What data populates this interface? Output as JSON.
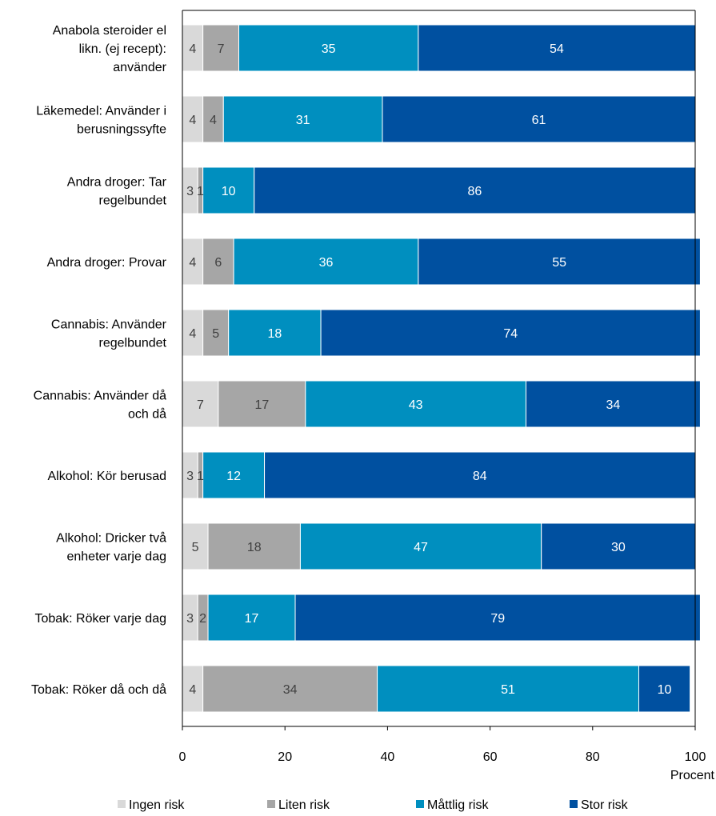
{
  "chart_data": {
    "type": "bar",
    "orientation": "horizontal",
    "stacked": true,
    "title": "",
    "xlabel": "Procent",
    "ylabel": "",
    "xlim": [
      0,
      100
    ],
    "xticks": [
      0,
      20,
      40,
      60,
      80,
      100
    ],
    "grid": false,
    "legend_position": "bottom",
    "categories": [
      [
        "Anabola steroider el",
        "likn. (ej recept):",
        "använder"
      ],
      [
        "Läkemedel: Använder i",
        "berusningssyfte"
      ],
      [
        "Andra droger: Tar",
        "regelbundet"
      ],
      [
        "Andra droger: Provar"
      ],
      [
        "Cannabis: Använder",
        "regelbundet"
      ],
      [
        "Cannabis: Använder då",
        "och då"
      ],
      [
        "Alkohol: Kör berusad"
      ],
      [
        "Alkohol: Dricker två",
        "enheter varje dag"
      ],
      [
        "Tobak: Röker varje dag"
      ],
      [
        "Tobak: Röker då och då"
      ]
    ],
    "series": [
      {
        "name": "Ingen risk",
        "color": "#d9d9d9",
        "label_color": "#404040",
        "values": [
          4,
          4,
          3,
          4,
          4,
          7,
          3,
          5,
          3,
          4
        ]
      },
      {
        "name": "Liten risk",
        "color": "#a6a6a6",
        "label_color": "#404040",
        "values": [
          7,
          4,
          1,
          6,
          5,
          17,
          1,
          18,
          2,
          34
        ]
      },
      {
        "name": "Måttlig risk",
        "color": "#008fbf",
        "label_color": "#ffffff",
        "values": [
          35,
          31,
          10,
          36,
          18,
          43,
          12,
          47,
          17,
          51
        ]
      },
      {
        "name": "Stor risk",
        "color": "#0050a0",
        "label_color": "#ffffff",
        "values": [
          54,
          61,
          86,
          55,
          74,
          34,
          84,
          30,
          79,
          10
        ]
      }
    ]
  }
}
